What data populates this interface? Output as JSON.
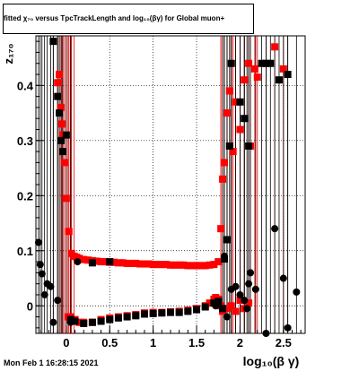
{
  "chart_data": {
    "type": "scatter",
    "title": "fitted  χ₇₀ versus TpcTrackLength and log₁₀(βγ) for Global muon+",
    "xlabel": "log₁₀(β γ)",
    "ylabel": "z₁₇₀",
    "xlim": [
      -0.35,
      2.75
    ],
    "ylim": [
      -0.05,
      0.49
    ],
    "x_ticks": [
      {
        "value": 0,
        "label": "0"
      },
      {
        "value": 0.5,
        "label": "0.5"
      },
      {
        "value": 1,
        "label": "1"
      },
      {
        "value": 1.5,
        "label": "1.5"
      },
      {
        "value": 2,
        "label": "2"
      },
      {
        "value": 2.5,
        "label": "2.5"
      }
    ],
    "y_ticks": [
      {
        "value": 0,
        "label": "0"
      },
      {
        "value": 0.1,
        "label": "0.1"
      },
      {
        "value": 0.2,
        "label": "0.2"
      },
      {
        "value": 0.3,
        "label": "0.3"
      },
      {
        "value": 0.4,
        "label": "0.4"
      }
    ],
    "grid": true,
    "series": [
      {
        "color": "#ff0000",
        "marker": "square",
        "points": [
          [
            -0.1,
            0.405
          ],
          [
            -0.08,
            0.42
          ],
          [
            -0.06,
            0.36
          ],
          [
            -0.05,
            0.33
          ],
          [
            -0.04,
            0.31
          ],
          [
            -0.02,
            0.26
          ],
          [
            0.0,
            0.195
          ],
          [
            0.03,
            0.135
          ],
          [
            0.06,
            0.095
          ],
          [
            0.09,
            0.09
          ],
          [
            0.12,
            0.088
          ],
          [
            0.15,
            0.086
          ],
          [
            0.2,
            0.084
          ],
          [
            0.25,
            0.083
          ],
          [
            0.3,
            0.082
          ],
          [
            0.35,
            0.081
          ],
          [
            0.4,
            0.08
          ],
          [
            0.45,
            0.08
          ],
          [
            0.5,
            0.079
          ],
          [
            0.55,
            0.079
          ],
          [
            0.6,
            0.078
          ],
          [
            0.65,
            0.078
          ],
          [
            0.7,
            0.077
          ],
          [
            0.75,
            0.077
          ],
          [
            0.8,
            0.077
          ],
          [
            0.85,
            0.076
          ],
          [
            0.9,
            0.076
          ],
          [
            0.95,
            0.076
          ],
          [
            1.0,
            0.075
          ],
          [
            1.05,
            0.075
          ],
          [
            1.1,
            0.075
          ],
          [
            1.15,
            0.075
          ],
          [
            1.2,
            0.074
          ],
          [
            1.25,
            0.074
          ],
          [
            1.3,
            0.074
          ],
          [
            1.35,
            0.074
          ],
          [
            1.4,
            0.073
          ],
          [
            1.45,
            0.073
          ],
          [
            1.5,
            0.073
          ],
          [
            1.55,
            0.073
          ],
          [
            1.6,
            0.073
          ],
          [
            1.65,
            0.074
          ],
          [
            1.7,
            0.075
          ],
          [
            1.75,
            0.08
          ],
          [
            1.78,
            0.14
          ],
          [
            1.8,
            0.23
          ],
          [
            1.82,
            0.26
          ],
          [
            1.85,
            0.35
          ],
          [
            1.88,
            0.39
          ],
          [
            1.92,
            0.28
          ],
          [
            1.95,
            0.37
          ],
          [
            2.0,
            0.32
          ],
          [
            2.05,
            0.41
          ],
          [
            2.1,
            0.44
          ],
          [
            2.12,
            0.29
          ],
          [
            2.17,
            0.43
          ],
          [
            2.2,
            0.415
          ],
          [
            2.4,
            0.47
          ],
          [
            2.5,
            0.43
          ],
          [
            0.02,
            -0.02
          ],
          [
            0.05,
            -0.02
          ],
          [
            0.1,
            -0.025
          ],
          [
            0.15,
            -0.03
          ],
          [
            0.2,
            -0.03
          ],
          [
            0.3,
            -0.03
          ],
          [
            0.4,
            -0.025
          ],
          [
            0.5,
            -0.022
          ],
          [
            0.6,
            -0.02
          ],
          [
            0.7,
            -0.018
          ],
          [
            0.8,
            -0.016
          ],
          [
            0.9,
            -0.013
          ],
          [
            1.0,
            -0.012
          ],
          [
            1.1,
            -0.012
          ],
          [
            1.2,
            -0.011
          ],
          [
            1.3,
            -0.01
          ],
          [
            1.4,
            -0.008
          ],
          [
            1.5,
            -0.005
          ],
          [
            1.6,
            0.0
          ],
          [
            1.65,
            0.005
          ],
          [
            1.7,
            0.012
          ],
          [
            1.72,
            0.015
          ],
          [
            1.75,
            0.012
          ],
          [
            1.78,
            0.0
          ],
          [
            1.8,
            -0.01
          ],
          [
            1.85,
            -0.005
          ],
          [
            1.9,
            0.0
          ],
          [
            1.95,
            -0.01
          ],
          [
            2.0,
            0.01
          ],
          [
            2.05,
            -0.005
          ],
          [
            2.1,
            0.005
          ]
        ]
      },
      {
        "color": "#000000",
        "marker": "square",
        "points": [
          [
            -0.15,
            0.48
          ],
          [
            -0.1,
            0.38
          ],
          [
            -0.08,
            0.35
          ],
          [
            -0.06,
            0.3
          ],
          [
            -0.04,
            0.28
          ],
          [
            0.0,
            0.31
          ],
          [
            0.3,
            0.078
          ],
          [
            0.5,
            0.08
          ],
          [
            1.82,
            0.085
          ],
          [
            1.85,
            0.12
          ],
          [
            1.9,
            0.44
          ],
          [
            2.0,
            0.37
          ],
          [
            2.05,
            0.34
          ],
          [
            2.1,
            0.29
          ],
          [
            2.25,
            0.44
          ],
          [
            2.3,
            0.44
          ],
          [
            2.35,
            0.44
          ],
          [
            2.45,
            0.41
          ],
          [
            2.55,
            0.42
          ],
          [
            1.88,
            0.29
          ],
          [
            0.05,
            -0.025
          ],
          [
            0.1,
            -0.028
          ],
          [
            0.2,
            -0.032
          ],
          [
            0.3,
            -0.03
          ],
          [
            0.4,
            -0.028
          ],
          [
            0.5,
            -0.025
          ],
          [
            0.6,
            -0.022
          ],
          [
            0.7,
            -0.02
          ],
          [
            0.8,
            -0.018
          ],
          [
            0.9,
            -0.015
          ],
          [
            1.0,
            -0.014
          ],
          [
            1.1,
            -0.013
          ],
          [
            1.2,
            -0.012
          ],
          [
            1.3,
            -0.012
          ],
          [
            1.4,
            -0.01
          ],
          [
            1.5,
            -0.007
          ],
          [
            1.6,
            -0.002
          ],
          [
            1.7,
            0.005
          ],
          [
            1.75,
            0.008
          ],
          [
            1.8,
            -0.005
          ]
        ]
      },
      {
        "color": "#000000",
        "marker": "circle",
        "points": [
          [
            -0.32,
            0.115
          ],
          [
            -0.3,
            0.075
          ],
          [
            -0.28,
            0.058
          ],
          [
            -0.25,
            0.02
          ],
          [
            -0.22,
            0.04
          ],
          [
            -0.18,
            0.035
          ],
          [
            -0.15,
            -0.03
          ],
          [
            -0.1,
            0.01
          ],
          [
            0.05,
            -0.03
          ],
          [
            0.13,
            0.08
          ],
          [
            1.82,
            0.09
          ],
          [
            1.9,
            0.03
          ],
          [
            1.95,
            0.035
          ],
          [
            2.0,
            0.02
          ],
          [
            2.05,
            0.01
          ],
          [
            2.08,
            -0.005
          ],
          [
            2.12,
            0.06
          ],
          [
            2.18,
            0.03
          ],
          [
            2.3,
            -0.05
          ],
          [
            2.4,
            0.14
          ],
          [
            2.5,
            0.05
          ],
          [
            2.55,
            -0.04
          ],
          [
            2.65,
            0.025
          ],
          [
            2.1,
            0.04
          ],
          [
            1.85,
            -0.02
          ],
          [
            1.72,
            0.0
          ]
        ]
      }
    ]
  },
  "footer": {
    "date_stamp": "Mon Feb  1 16:28:15 2021"
  }
}
